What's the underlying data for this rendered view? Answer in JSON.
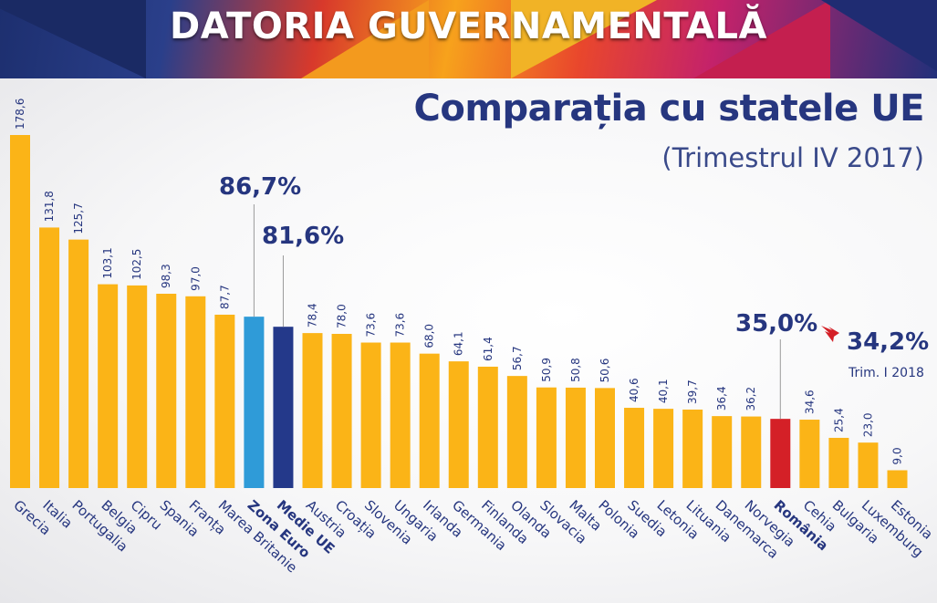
{
  "banner": {
    "title": "DATORIA GUVERNAMENTALĂ"
  },
  "chart_data": {
    "type": "bar",
    "title": "Comparația cu statele UE",
    "subtitle": "(Trimestrul IV 2017)",
    "xlabel": "",
    "ylabel": "",
    "ylim": [
      0,
      180
    ],
    "categories": [
      "Grecia",
      "Italia",
      "Portugalia",
      "Belgia",
      "Cipru",
      "Spania",
      "Franța",
      "Marea Britanie",
      "Zona Euro",
      "Medie UE",
      "Austria",
      "Croația",
      "Slovenia",
      "Ungaria",
      "Irlanda",
      "Germania",
      "Finlanda",
      "Olanda",
      "Slovacia",
      "Malta",
      "Polonia",
      "Suedia",
      "Letonia",
      "Lituania",
      "Danemarca",
      "Norvegia",
      "România",
      "Cehia",
      "Bulgaria",
      "Luxemburg",
      "Estonia"
    ],
    "values": [
      178.6,
      131.8,
      125.7,
      103.1,
      102.5,
      98.3,
      97.0,
      87.7,
      86.7,
      81.6,
      78.4,
      78.0,
      73.6,
      73.6,
      68.0,
      64.1,
      61.4,
      56.7,
      50.9,
      50.8,
      50.6,
      40.6,
      40.1,
      39.7,
      36.4,
      36.2,
      35.0,
      34.6,
      25.4,
      23.0,
      9.0
    ],
    "value_labels": [
      "178,6",
      "131,8",
      "125,7",
      "103,1",
      "102,5",
      "98,3",
      "97,0",
      "87,7",
      "",
      "",
      "78,4",
      "78,0",
      "73,6",
      "73,6",
      "68,0",
      "64,1",
      "61,4",
      "56,7",
      "50,9",
      "50,8",
      "50,6",
      "40,6",
      "40,1",
      "39,7",
      "36,4",
      "36,2",
      "",
      "34,6",
      "25,4",
      "23,0",
      "9,0"
    ],
    "bold_categories": [
      "Zona Euro",
      "Medie UE",
      "România"
    ],
    "colors": {
      "default": "#fbb417",
      "Zona Euro": "#2f9bd8",
      "Medie UE": "#24398a",
      "România": "#d42027",
      "label": "#26367f",
      "arrow": "#d42027"
    },
    "callouts": {
      "zona_euro": "86,7%",
      "medie_ue": "81,6%",
      "romania": "35,0%",
      "romania_q1": "34,2%",
      "romania_q1_note": "Trim. I 2018"
    },
    "grid": false,
    "legend": "none"
  }
}
